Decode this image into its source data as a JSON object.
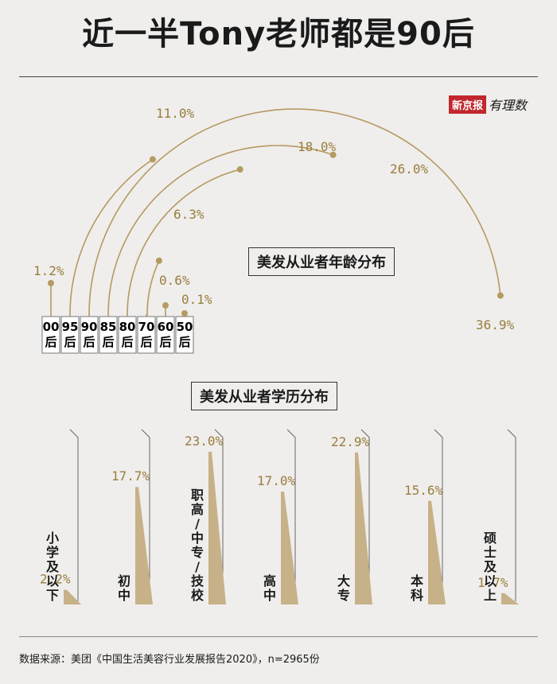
{
  "title": "近一半Tony老师都是90后",
  "logo": {
    "red_text": "新京报",
    "script_text": "有理数"
  },
  "colors": {
    "gold": "#b59a62",
    "label_gold": "#9a7d3e",
    "bar_fill": "#c7b188",
    "background": "#efeeec"
  },
  "chart_data": [
    {
      "type": "arc",
      "title": "美发从业者年龄分布",
      "categories": [
        "00后",
        "95后",
        "90后",
        "85后",
        "80后",
        "70后",
        "60后",
        "50后"
      ],
      "category_lines": [
        [
          "00",
          "后"
        ],
        [
          "95",
          "后"
        ],
        [
          "90",
          "后"
        ],
        [
          "85",
          "后"
        ],
        [
          "80",
          "后"
        ],
        [
          "70",
          "后"
        ],
        [
          "60",
          "后"
        ],
        [
          "50",
          "后"
        ]
      ],
      "values": [
        1.2,
        11.0,
        36.9,
        26.0,
        18.0,
        6.3,
        0.6,
        0.1
      ],
      "value_labels": [
        "1.2%",
        "11.0%",
        "36.9%",
        "26.0%",
        "18.0%",
        "6.3%",
        "0.6%",
        "0.1%"
      ],
      "unit": "%"
    },
    {
      "type": "bar",
      "title": "美发从业者学历分布",
      "categories": [
        "小学及以下",
        "初中",
        "职高/中专/技校",
        "高中",
        "大专",
        "本科",
        "硕士及以上"
      ],
      "values": [
        2.2,
        17.7,
        23.0,
        17.0,
        22.9,
        15.6,
        1.7
      ],
      "value_labels": [
        "2.2%",
        "17.7%",
        "23.0%",
        "17.0%",
        "22.9%",
        "15.6%",
        "1.7%"
      ],
      "unit": "%"
    }
  ],
  "source": "数据来源：美团《中国生活美容行业发展报告2020》，n=2965份"
}
